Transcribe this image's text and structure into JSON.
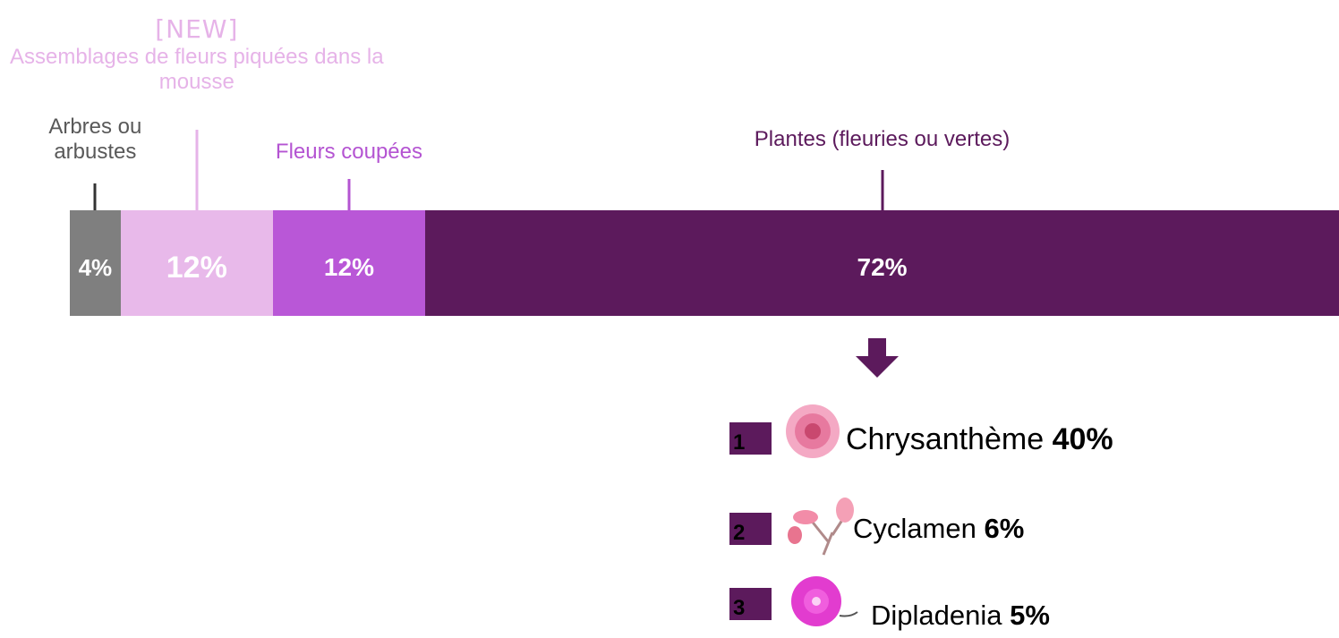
{
  "chart_data": {
    "type": "stacked-bar",
    "xlim": [
      0,
      100
    ],
    "series": [
      {
        "name": "Arbres ou arbustes",
        "color": "#7f7f7f",
        "label_color": "#595959",
        "values": [
          4
        ],
        "value_labels": [
          "4%"
        ]
      },
      {
        "name": "Assemblages de fleurs piquées dans la mousse",
        "tag": "[NEW]",
        "color": "#e8b9ea",
        "label_color": "#e6b3e8",
        "values": [
          12
        ],
        "value_labels": [
          "12%"
        ]
      },
      {
        "name": "Fleurs coupées",
        "color": "#b957d7",
        "label_color": "#b454d2",
        "values": [
          12
        ],
        "value_labels": [
          "12%"
        ]
      },
      {
        "name": "Plantes (fleuries ou vertes)",
        "color": "#5c1a5c",
        "label_color": "#5c1a5c",
        "values": [
          72
        ],
        "value_labels": [
          "72%"
        ]
      }
    ]
  },
  "ranking": {
    "items": [
      {
        "rank": 1,
        "name": "Chrysanthème",
        "value": "40%"
      },
      {
        "rank": 2,
        "name": "Cyclamen",
        "value": "6%"
      },
      {
        "rank": 3,
        "name": "Dipladenia",
        "value": "5%"
      }
    ]
  }
}
